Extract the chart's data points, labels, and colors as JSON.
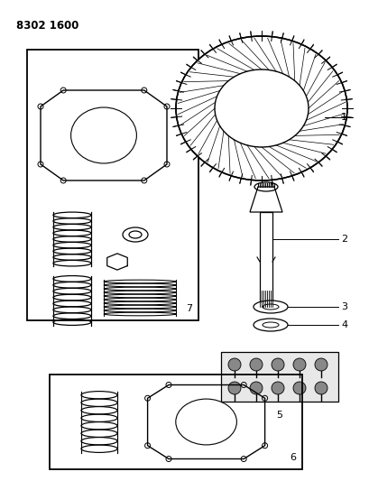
{
  "title": "8302 1600",
  "background_color": "#ffffff",
  "line_color": "#000000",
  "fig_width": 4.1,
  "fig_height": 5.33,
  "dpi": 100
}
